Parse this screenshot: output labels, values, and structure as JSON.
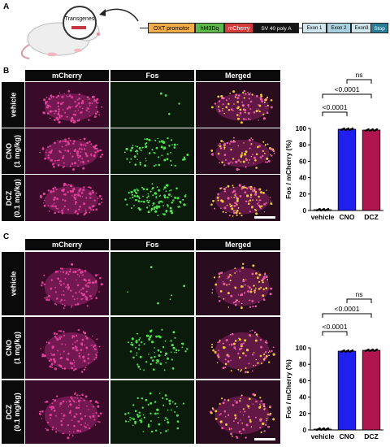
{
  "panels": {
    "A": {
      "letter": "A",
      "transgenes_label": "Transgenes",
      "construct": [
        "OXT promotor",
        "hM3Dq",
        "mCherry",
        "SV 40 poly A",
        "Exon 1",
        "Exon 2",
        "Exon3",
        "Stop"
      ]
    },
    "B": {
      "letter": "B",
      "column_headers": [
        "mCherry",
        "Fos",
        "Merged"
      ],
      "row_labels": [
        "vehicle",
        "CNO\n(1 mg/kg)",
        "DCZ\n(0.1 mg/kg)"
      ]
    },
    "C": {
      "letter": "C",
      "column_headers": [
        "mCherry",
        "Fos",
        "Merged"
      ],
      "row_labels": [
        "vehicle",
        "CNO\n(1 mg/kg)",
        "DCZ\n(0.1 mg/kg)"
      ]
    }
  },
  "colors": {
    "vehicle": "#6e6e6e",
    "CNO": "#1f1ff0",
    "DCZ": "#b0154f",
    "mcherry": "#c2287a",
    "fos": "#3fd23f",
    "promoter": "#f2ad4a",
    "hm3dq": "#5fb84a",
    "mcherry_box": "#d63b3b",
    "polyA": "#151515",
    "exon": "#cfe6ee",
    "stop": "#2a7d97"
  },
  "chart_data": [
    {
      "type": "bar",
      "panel": "B",
      "categories": [
        "vehicle",
        "CNO",
        "DCZ"
      ],
      "values": [
        1,
        99,
        98
      ],
      "ylabel": "Fos / mCherry (%)",
      "xlabel": "",
      "ylim": [
        0,
        100
      ],
      "yticks": [
        0,
        20,
        40,
        60,
        80,
        100
      ],
      "comparisons": [
        {
          "pair": [
            "vehicle",
            "CNO"
          ],
          "label": "<0.0001"
        },
        {
          "pair": [
            "vehicle",
            "DCZ"
          ],
          "label": "<0.0001"
        },
        {
          "pair": [
            "CNO",
            "DCZ"
          ],
          "label": "ns"
        }
      ]
    },
    {
      "type": "bar",
      "panel": "C",
      "categories": [
        "vehicle",
        "CNO",
        "DCZ"
      ],
      "values": [
        1,
        96,
        97
      ],
      "ylabel": "Fos / mCherry (%)",
      "xlabel": "",
      "ylim": [
        0,
        100
      ],
      "yticks": [
        0,
        20,
        40,
        60,
        80,
        100
      ],
      "comparisons": [
        {
          "pair": [
            "vehicle",
            "CNO"
          ],
          "label": "<0.0001"
        },
        {
          "pair": [
            "vehicle",
            "DCZ"
          ],
          "label": "<0.0001"
        },
        {
          "pair": [
            "CNO",
            "DCZ"
          ],
          "label": "ns"
        }
      ]
    }
  ]
}
